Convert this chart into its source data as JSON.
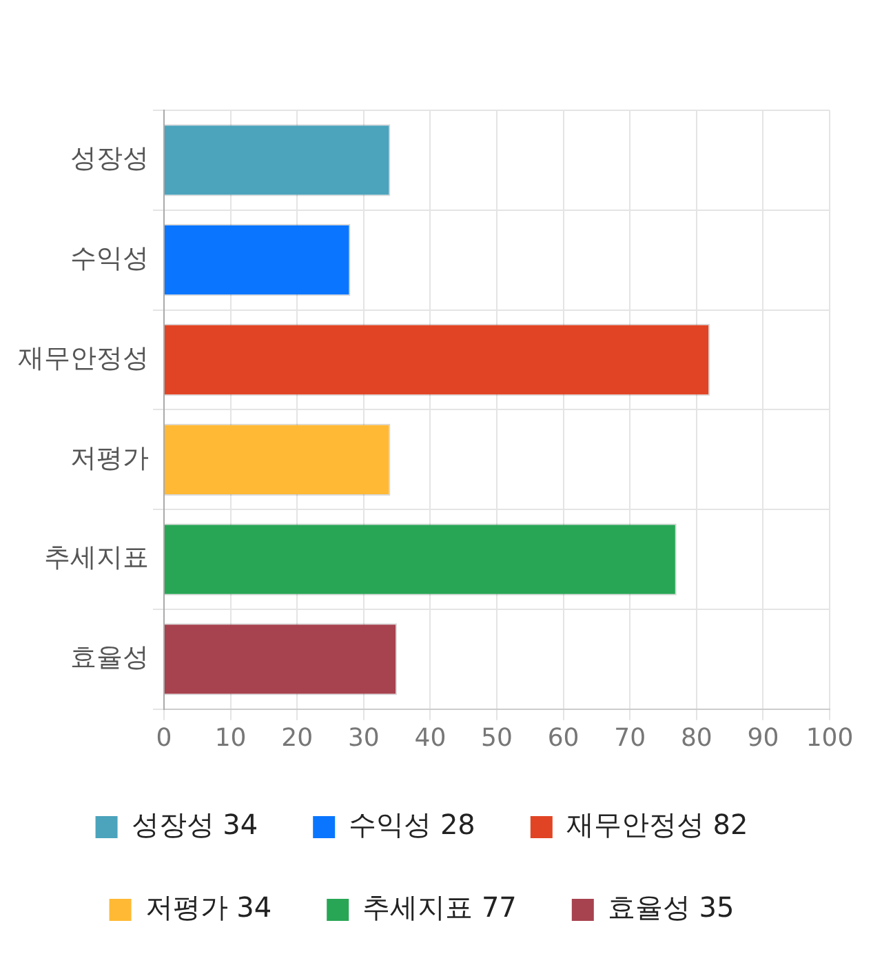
{
  "chart_data": {
    "type": "bar",
    "orientation": "horizontal",
    "stacked": true,
    "categories": [
      "성장성",
      "수익성",
      "재무안정성",
      "저평가",
      "추세지표",
      "효율성"
    ],
    "series": [
      {
        "name": "성장성 34",
        "color": "#4ba3bc",
        "values": [
          34,
          null,
          null,
          null,
          null,
          null
        ]
      },
      {
        "name": "수익성 28",
        "color": "#0a76ff",
        "values": [
          null,
          28,
          null,
          null,
          null,
          null
        ]
      },
      {
        "name": "재무안정성 82",
        "color": "#e14424",
        "values": [
          null,
          null,
          82,
          null,
          null,
          null
        ]
      },
      {
        "name": "저평가 34",
        "color": "#ffb934",
        "values": [
          null,
          null,
          null,
          34,
          null,
          null
        ]
      },
      {
        "name": "추세지표 77",
        "color": "#28a655",
        "values": [
          null,
          null,
          null,
          null,
          77,
          null
        ]
      },
      {
        "name": "효율성 35",
        "color": "#a7424f",
        "values": [
          null,
          null,
          null,
          null,
          null,
          35
        ]
      }
    ],
    "xlim": [
      0,
      100
    ],
    "xticks": [
      0,
      10,
      20,
      30,
      40,
      50,
      60,
      70,
      80,
      90,
      100
    ],
    "grid": true,
    "legend": "bottom"
  }
}
